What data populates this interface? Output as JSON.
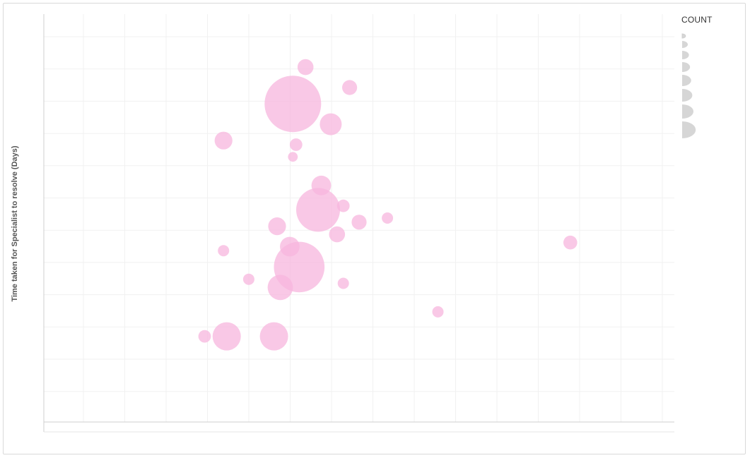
{
  "chart_data": {
    "type": "scatter",
    "variant": "bubble",
    "ylabel": "Time taken for Specialist to resolve (Days)",
    "xlabel": "",
    "legend": {
      "title": "COUNT",
      "placement": "top-right"
    },
    "grid": true,
    "bubble_color": "#f7b6dd",
    "xlim": [
      0,
      100
    ],
    "ylim": [
      0,
      100
    ],
    "size_range": [
      1,
      100
    ],
    "points": [
      {
        "x": 41.5,
        "y": 87,
        "size": 8
      },
      {
        "x": 48.5,
        "y": 82,
        "size": 7
      },
      {
        "x": 39.5,
        "y": 78,
        "size": 100
      },
      {
        "x": 45.5,
        "y": 73,
        "size": 15
      },
      {
        "x": 28.5,
        "y": 69,
        "size": 10
      },
      {
        "x": 40,
        "y": 68,
        "size": 5
      },
      {
        "x": 39.5,
        "y": 65,
        "size": 3
      },
      {
        "x": 44,
        "y": 58,
        "size": 12
      },
      {
        "x": 43.5,
        "y": 52,
        "size": 60
      },
      {
        "x": 47.5,
        "y": 53,
        "size": 5
      },
      {
        "x": 50,
        "y": 49,
        "size": 7
      },
      {
        "x": 54.5,
        "y": 50,
        "size": 4
      },
      {
        "x": 37,
        "y": 48,
        "size": 10
      },
      {
        "x": 46.5,
        "y": 46,
        "size": 8
      },
      {
        "x": 39,
        "y": 43,
        "size": 12
      },
      {
        "x": 28.5,
        "y": 42,
        "size": 4
      },
      {
        "x": 40.5,
        "y": 38,
        "size": 80
      },
      {
        "x": 37.5,
        "y": 33,
        "size": 20
      },
      {
        "x": 32.5,
        "y": 35,
        "size": 4
      },
      {
        "x": 47.5,
        "y": 34,
        "size": 4
      },
      {
        "x": 83.5,
        "y": 44,
        "size": 6
      },
      {
        "x": 62.5,
        "y": 27,
        "size": 4
      },
      {
        "x": 29,
        "y": 21,
        "size": 25
      },
      {
        "x": 36.5,
        "y": 21,
        "size": 25
      },
      {
        "x": 25.5,
        "y": 21,
        "size": 5
      }
    ]
  }
}
